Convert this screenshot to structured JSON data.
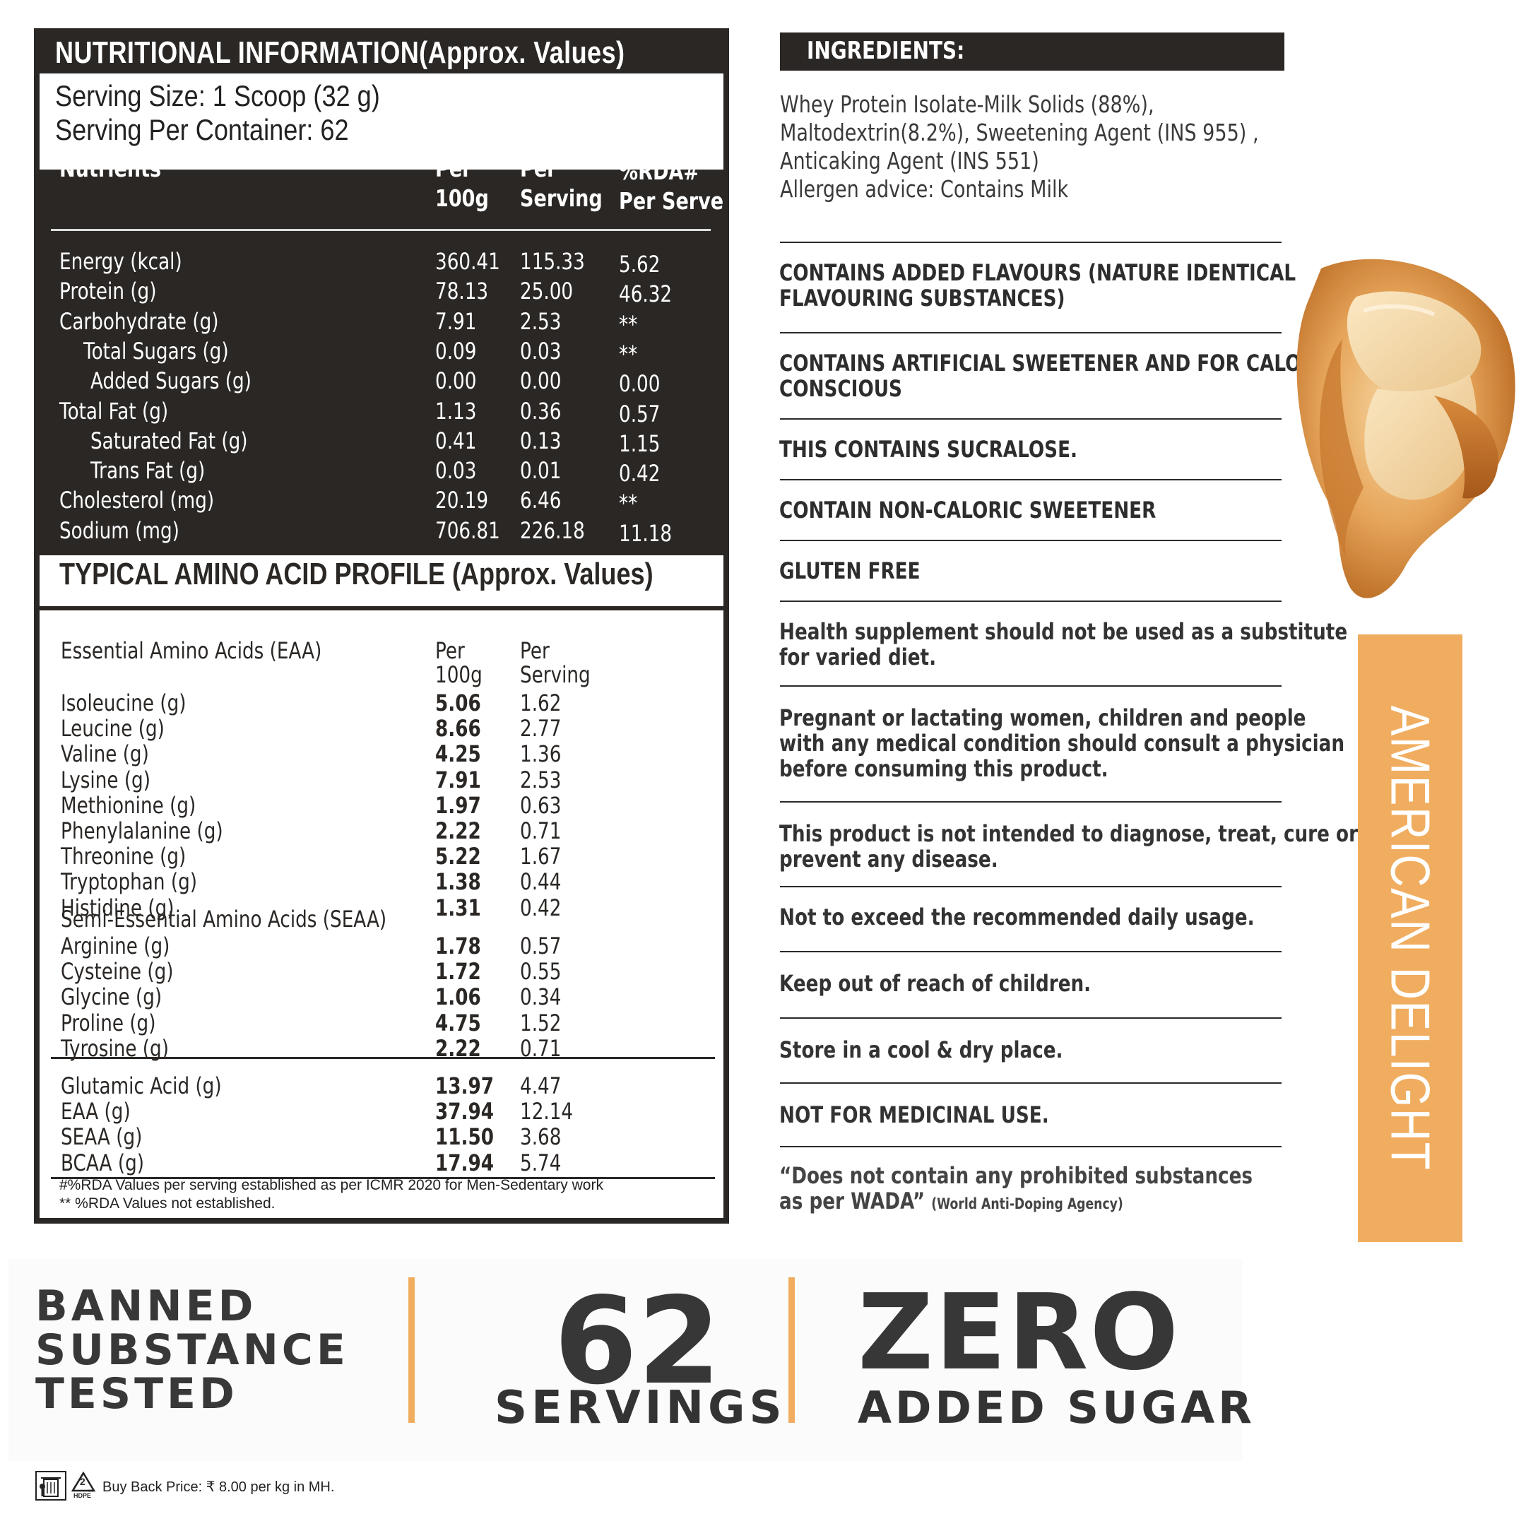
{
  "nutrition": {
    "title": "NUTRITIONAL INFORMATION(Approx. Values)",
    "serving_size": "Serving Size: 1 Scoop (32 g)",
    "serving_per_container": "Serving Per Container: 62",
    "headers": {
      "nutrients": "Nutrients",
      "per100_1": "Per",
      "per100_2": "100g",
      "perserv_1": "Per",
      "perserv_2": "Serving",
      "rda_1": "%RDA#",
      "rda_2": "Per Serve"
    },
    "rows": [
      {
        "name": "Energy (kcal)",
        "indent": 0,
        "per100": "360.41",
        "serving": "115.33",
        "rda": "5.62"
      },
      {
        "name": "Protein (g)",
        "indent": 0,
        "per100": "78.13",
        "serving": "25.00",
        "rda": "46.32"
      },
      {
        "name": "Carbohydrate (g)",
        "indent": 0,
        "per100": "7.91",
        "serving": "2.53",
        "rda": "**"
      },
      {
        "name": "Total Sugars (g)",
        "indent": 1,
        "per100": "0.09",
        "serving": "0.03",
        "rda": "**"
      },
      {
        "name": "Added Sugars (g)",
        "indent": 2,
        "per100": "0.00",
        "serving": "0.00",
        "rda": "0.00"
      },
      {
        "name": "Total Fat (g)",
        "indent": 0,
        "per100": "1.13",
        "serving": "0.36",
        "rda": "0.57"
      },
      {
        "name": "Saturated Fat (g)",
        "indent": 2,
        "per100": "0.41",
        "serving": "0.13",
        "rda": "1.15"
      },
      {
        "name": "Trans Fat (g)",
        "indent": 2,
        "per100": "0.03",
        "serving": "0.01",
        "rda": "0.42"
      },
      {
        "name": "Cholesterol (mg)",
        "indent": 0,
        "per100": "20.19",
        "serving": "6.46",
        "rda": "**"
      },
      {
        "name": "Sodium (mg)",
        "indent": 0,
        "per100": "706.81",
        "serving": "226.18",
        "rda": "11.18"
      }
    ]
  },
  "amino": {
    "title": "TYPICAL AMINO ACID PROFILE (Approx. Values)",
    "eaa_heading": "Essential Amino Acids (EAA)",
    "per100_1": "Per",
    "per100_2": "100g",
    "perserv_1": "Per",
    "perserv_2": "Serving",
    "eaa_rows": [
      {
        "name": "Isoleucine (g)",
        "per100": "5.06",
        "serving": "1.62"
      },
      {
        "name": "Leucine (g)",
        "per100": "8.66",
        "serving": "2.77"
      },
      {
        "name": "Valine (g)",
        "per100": "4.25",
        "serving": "1.36"
      },
      {
        "name": "Lysine (g)",
        "per100": "7.91",
        "serving": "2.53"
      },
      {
        "name": "Methionine (g)",
        "per100": "1.97",
        "serving": "0.63"
      },
      {
        "name": "Phenylalanine (g)",
        "per100": "2.22",
        "serving": "0.71"
      },
      {
        "name": "Threonine (g)",
        "per100": "5.22",
        "serving": "1.67"
      },
      {
        "name": "Tryptophan (g)",
        "per100": "1.38",
        "serving": "0.44"
      },
      {
        "name": "Histidine (g)",
        "per100": "1.31",
        "serving": "0.42"
      }
    ],
    "seaa_heading": "Semi-Essential Amino Acids (SEAA)",
    "seaa_rows": [
      {
        "name": "Arginine (g)",
        "per100": "1.78",
        "serving": "0.57"
      },
      {
        "name": "Cysteine (g)",
        "per100": "1.72",
        "serving": "0.55"
      },
      {
        "name": "Glycine (g)",
        "per100": "1.06",
        "serving": "0.34"
      },
      {
        "name": "Proline (g)",
        "per100": "4.75",
        "serving": "1.52"
      },
      {
        "name": "Tyrosine (g)",
        "per100": "2.22",
        "serving": "0.71"
      }
    ],
    "total_rows": [
      {
        "name": "Glutamic Acid (g)",
        "per100": "13.97",
        "serving": "4.47"
      },
      {
        "name": "EAA (g)",
        "per100": "37.94",
        "serving": "12.14"
      },
      {
        "name": "SEAA (g)",
        "per100": "11.50",
        "serving": "3.68"
      },
      {
        "name": "BCAA (g)",
        "per100": "17.94",
        "serving": "5.74"
      }
    ],
    "footnote_1": "#%RDA Values per serving established as per ICMR 2020 for Men-Sedentary work",
    "footnote_2": "** %RDA Values not established."
  },
  "ingredients": {
    "heading": "INGREDIENTS:",
    "lines": [
      "Whey Protein Isolate-Milk Solids (88%),",
      "Maltodextrin(8.2%), Sweetening Agent (INS 955) ,",
      "Anticaking Agent (INS 551)",
      "Allergen advice: Contains Milk"
    ]
  },
  "statements": [
    {
      "lines": [
        "CONTAINS ADDED FLAVOURS (NATURE IDENTICAL",
        "FLAVOURING SUBSTANCES)"
      ]
    },
    {
      "lines": [
        "CONTAINS ARTIFICIAL SWEETENER AND FOR CALORIE",
        "CONSCIOUS"
      ]
    },
    {
      "lines": [
        "THIS CONTAINS SUCRALOSE."
      ]
    },
    {
      "lines": [
        "CONTAIN NON-CALORIC SWEETENER"
      ]
    },
    {
      "lines": [
        "GLUTEN FREE"
      ]
    },
    {
      "lines": [
        "Health supplement should not be used as a substitute",
        "for varied diet."
      ]
    },
    {
      "lines": [
        "Pregnant or lactating women, children and people",
        "with any medical condition should consult a physician",
        "before consuming this product."
      ]
    },
    {
      "lines": [
        "This product is not intended to diagnose, treat, cure or",
        "prevent any disease."
      ]
    },
    {
      "lines": [
        "Not to exceed the recommended daily usage."
      ]
    },
    {
      "lines": [
        "Keep out of reach of children."
      ]
    },
    {
      "lines": [
        "Store in a cool & dry place."
      ]
    },
    {
      "lines": [
        "NOT FOR MEDICINAL USE."
      ]
    }
  ],
  "wada": {
    "line1": "“Does not contain any prohibited substances",
    "line2": "as per WADA”",
    "small": "(World Anti-Doping Agency)"
  },
  "flavour": "AMERICAN DELIGHT",
  "banner": {
    "banned_1": "BANNED",
    "banned_2": "SUBSTANCE",
    "banned_3": "TESTED",
    "servings_num": "62",
    "servings_label": "SERVINGS",
    "zero": "ZERO",
    "zero_label": "ADDED SUGAR"
  },
  "footer": {
    "recycle_code": "2",
    "recycle_label": "HDPE",
    "buyback": "Buy Back Price: ₹ 8.00 per kg in MH."
  },
  "colors": {
    "dark_panel": "#2a2725",
    "accent_orange": "#f0ad5f"
  }
}
